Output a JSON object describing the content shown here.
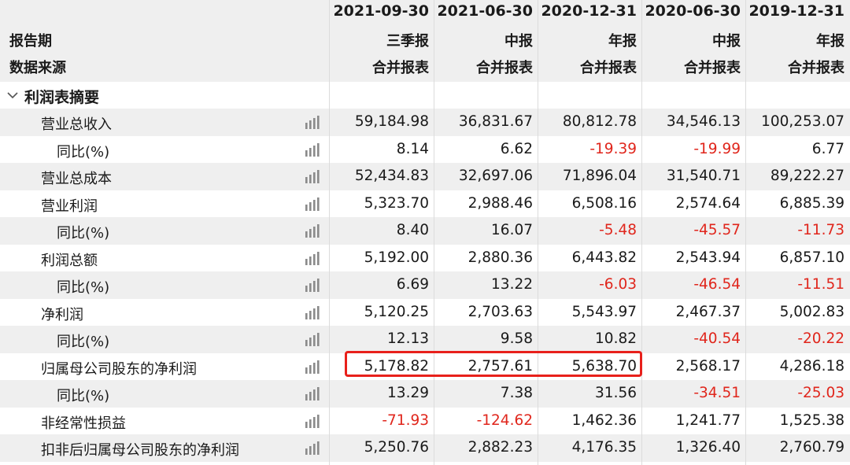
{
  "header": {
    "period_label": "报告期",
    "source_label": "数据来源"
  },
  "columns": [
    {
      "date": "2021-09-30",
      "type": "三季报",
      "source": "合并报表"
    },
    {
      "date": "2021-06-30",
      "type": "中报",
      "source": "合并报表"
    },
    {
      "date": "2020-12-31",
      "type": "年报",
      "source": "合并报表"
    },
    {
      "date": "2020-06-30",
      "type": "中报",
      "source": "合并报表"
    },
    {
      "date": "2019-12-31",
      "type": "年报",
      "source": "合并报表"
    }
  ],
  "section": {
    "label": "利润表摘要",
    "icon": "chevron-down-icon"
  },
  "rows": [
    {
      "label": "营业总收入",
      "indent": 1,
      "values": [
        "59,184.98",
        "36,831.67",
        "80,812.78",
        "34,546.13",
        "100,253.07"
      ]
    },
    {
      "label": "同比(%)",
      "indent": 2,
      "values": [
        "8.14",
        "6.62",
        "-19.39",
        "-19.99",
        "6.77"
      ]
    },
    {
      "label": "营业总成本",
      "indent": 1,
      "values": [
        "52,434.83",
        "32,697.06",
        "71,896.04",
        "31,540.71",
        "89,222.27"
      ]
    },
    {
      "label": "营业利润",
      "indent": 1,
      "values": [
        "5,323.70",
        "2,988.46",
        "6,508.16",
        "2,574.64",
        "6,885.39"
      ]
    },
    {
      "label": "同比(%)",
      "indent": 2,
      "values": [
        "8.40",
        "16.07",
        "-5.48",
        "-45.57",
        "-11.73"
      ]
    },
    {
      "label": "利润总额",
      "indent": 1,
      "values": [
        "5,192.00",
        "2,880.36",
        "6,443.82",
        "2,543.94",
        "6,857.10"
      ]
    },
    {
      "label": "同比(%)",
      "indent": 2,
      "values": [
        "6.69",
        "13.22",
        "-6.03",
        "-46.54",
        "-11.51"
      ]
    },
    {
      "label": "净利润",
      "indent": 1,
      "values": [
        "5,120.25",
        "2,703.63",
        "5,543.97",
        "2,467.37",
        "5,002.83"
      ]
    },
    {
      "label": "同比(%)",
      "indent": 2,
      "values": [
        "12.13",
        "9.58",
        "10.82",
        "-40.54",
        "-20.22"
      ]
    },
    {
      "label": "归属母公司股东的净利润",
      "indent": 1,
      "values": [
        "5,178.82",
        "2,757.61",
        "5,638.70",
        "2,568.17",
        "4,286.18"
      ]
    },
    {
      "label": "同比(%)",
      "indent": 2,
      "values": [
        "13.29",
        "7.38",
        "31.56",
        "-34.51",
        "-25.03"
      ]
    },
    {
      "label": "非经常性损益",
      "indent": 1,
      "values": [
        "-71.93",
        "-124.62",
        "1,462.36",
        "1,241.77",
        "1,525.38"
      ]
    },
    {
      "label": "扣非后归属母公司股东的净利润",
      "indent": 1,
      "values": [
        "5,250.76",
        "2,882.23",
        "4,176.35",
        "1,326.40",
        "2,760.79"
      ]
    }
  ],
  "colors": {
    "negative": "#e0261c",
    "highlight_border": "#e8201b",
    "stripe": "#efefef",
    "icon": "#8a8a8a"
  },
  "icons": {
    "row_chart": "bar-chart-icon"
  }
}
